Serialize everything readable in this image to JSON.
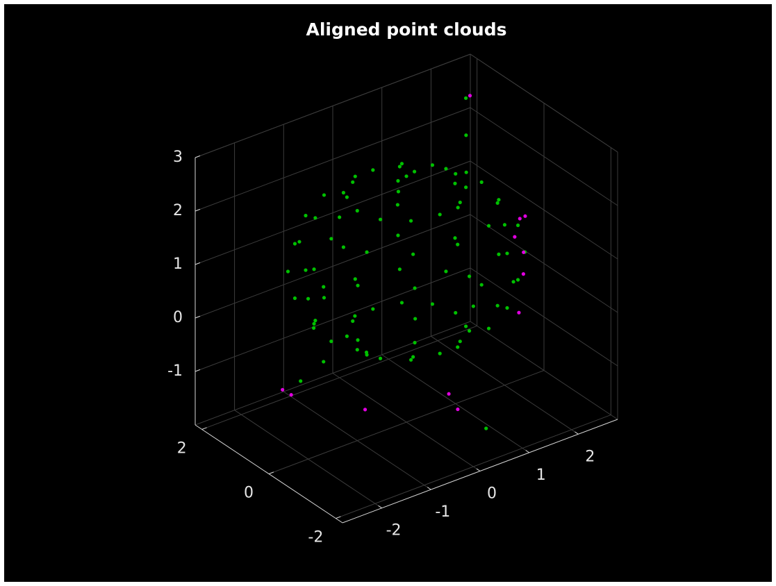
{
  "chart_data": {
    "type": "scatter3",
    "title": "Aligned point clouds",
    "xlim": [
      -2.8,
      2.8
    ],
    "ylim": [
      -2.2,
      2.2
    ],
    "zlim": [
      -2,
      3
    ],
    "xticks": [
      -2,
      -1,
      0,
      1,
      2
    ],
    "yticks": [
      -2,
      0,
      2
    ],
    "zticks": [
      -1,
      0,
      1,
      2,
      3
    ],
    "grid": true,
    "series": [
      {
        "color": "#00c000",
        "x": [
          1,
          0.87,
          0.5,
          0,
          -0.5,
          -0.87,
          -1,
          -0.87,
          -0.5,
          0,
          0.5,
          0.87,
          1.53,
          1.33,
          0.77,
          0,
          -0.77,
          -1.33,
          -1.53,
          -1.33,
          -0.77,
          0,
          0.77,
          1.33,
          1.88,
          1.63,
          0.94,
          0,
          -0.94,
          -1.63,
          -1.88,
          -1.63,
          -0.94,
          0,
          0.94,
          1.63,
          2,
          1.73,
          1,
          0,
          -1,
          -1.73,
          -2,
          -1.73,
          -1,
          0,
          1,
          1.73,
          1.88,
          1.63,
          0.94,
          0,
          -0.94,
          -1.63,
          -1.88,
          -1.63,
          -0.94,
          0,
          0.94,
          1.63,
          1.53,
          1.33,
          0.77,
          0,
          -0.77,
          -1.33,
          -1.53,
          -1.33,
          -0.77,
          0,
          0.77,
          1.33,
          1,
          0.87,
          0.5,
          0,
          -0.5,
          -0.87,
          -1,
          -0.87,
          -0.5,
          0,
          0.5,
          0.87,
          0,
          0.3,
          -0.3,
          1.9,
          2.1,
          2.3,
          -2.3,
          -2.5,
          -2.3,
          -1.2,
          0.6,
          -0.2
        ],
        "y": [
          0,
          0.5,
          0.87,
          1,
          0.87,
          0.5,
          0,
          -0.5,
          -0.87,
          -1,
          -0.87,
          -0.5,
          0,
          0.77,
          1.33,
          1.53,
          1.33,
          0.77,
          0,
          -0.77,
          -1.33,
          -1.53,
          -1.33,
          -0.77,
          0,
          0.94,
          1.63,
          1.88,
          1.63,
          0.94,
          0,
          -0.94,
          -1.63,
          -1.88,
          -1.63,
          -0.94,
          0,
          1,
          1.73,
          2,
          1.73,
          1,
          0,
          -1,
          -1.73,
          -2,
          -1.73,
          -1,
          0,
          0.94,
          1.63,
          1.88,
          1.63,
          0.94,
          0,
          -0.94,
          -1.63,
          -1.88,
          -1.63,
          -0.94,
          0,
          0.77,
          1.33,
          1.53,
          1.33,
          0.77,
          0,
          -0.77,
          -1.33,
          -1.53,
          -1.33,
          -0.77,
          0,
          0.5,
          0.87,
          1,
          0.87,
          0.5,
          0,
          -0.5,
          -0.87,
          -1,
          -0.87,
          -0.5,
          0,
          0.2,
          -0.2,
          1.0,
          1.3,
          1.6,
          -0.9,
          -0.9,
          -0.9,
          1.4,
          -1.5,
          0.9
        ],
        "z": [
          -0.3,
          -0.3,
          -0.3,
          -0.3,
          -0.3,
          -0.3,
          -0.3,
          -0.3,
          -0.3,
          -0.3,
          -0.3,
          -0.3,
          0.04,
          0.04,
          0.04,
          0.04,
          0.04,
          0.04,
          0.04,
          0.04,
          0.04,
          0.04,
          0.04,
          0.04,
          0.49,
          0.49,
          0.49,
          0.49,
          0.49,
          0.49,
          0.49,
          0.49,
          0.49,
          0.49,
          0.49,
          0.49,
          1,
          1,
          1,
          1,
          1,
          1,
          1,
          1,
          1,
          1,
          1,
          1,
          1.51,
          1.51,
          1.51,
          1.51,
          1.51,
          1.51,
          1.51,
          1.51,
          1.51,
          1.51,
          1.51,
          1.51,
          1.96,
          1.96,
          1.96,
          1.96,
          1.96,
          1.96,
          1.96,
          1.96,
          1.96,
          1.96,
          1.96,
          1.96,
          2.3,
          2.3,
          2.3,
          2.3,
          2.3,
          2.3,
          2.3,
          2.3,
          2.3,
          2.3,
          2.3,
          2.3,
          2.6,
          2.5,
          2.5,
          1.6,
          2.1,
          2.6,
          1.7,
          1.0,
          0.3,
          -1.4,
          -1.7,
          -1.0
        ]
      },
      {
        "color": "#e000e0",
        "x": [
          1.5,
          1.7,
          1.9,
          1.2,
          2.0,
          2.35,
          1.6,
          -1.5,
          -0.5,
          0.5,
          -1.8,
          1.0
        ],
        "y": [
          -1.3,
          -1.0,
          -0.6,
          -1.6,
          -0.3,
          1.55,
          -1.2,
          1.5,
          0.5,
          -0.8,
          0.8,
          0.2
        ],
        "z": [
          1.2,
          0.6,
          1.4,
          0.3,
          0.9,
          2.65,
          1.8,
          -1.5,
          -1.8,
          -1.6,
          -1.2,
          -1.9
        ]
      }
    ]
  }
}
